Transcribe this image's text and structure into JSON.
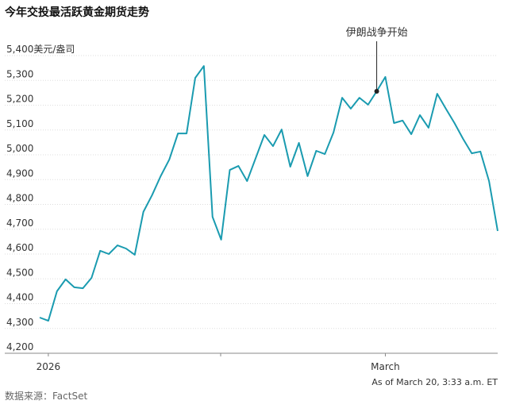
{
  "chart_data": {
    "type": "line",
    "title": "今年交投最活跃黄金期货走势",
    "categories": [
      null,
      "2026",
      null,
      null,
      null,
      null,
      null,
      null,
      null,
      null,
      null,
      null,
      null,
      null,
      null,
      null,
      null,
      null,
      null,
      null,
      null,
      null,
      null,
      null,
      null,
      null,
      null,
      null,
      null,
      null,
      null,
      null,
      null,
      null,
      null,
      null,
      null,
      null,
      null,
      null,
      "March",
      null,
      null,
      null,
      null,
      null,
      null,
      null,
      null,
      null,
      null,
      null,
      null,
      null
    ],
    "series": [
      {
        "name": "黄金期货",
        "color": "#1a9bb0",
        "values": [
          4344,
          4331,
          4450,
          4498,
          4466,
          4462,
          4504,
          4613,
          4600,
          4635,
          4622,
          4597,
          4770,
          4837,
          4914,
          4981,
          5086,
          5086,
          5310,
          5358,
          4750,
          4658,
          4939,
          4955,
          4894,
          4987,
          5080,
          5035,
          5102,
          4952,
          5048,
          4914,
          5016,
          5003,
          5090,
          5230,
          5186,
          5230,
          5202,
          5256,
          5314,
          5128,
          5138,
          5083,
          5160,
          5109,
          5246,
          5186,
          5128,
          5064,
          5006,
          5013,
          4894,
          4693
        ]
      }
    ],
    "ylim": [
      4200,
      5400
    ],
    "yticks": [
      {
        "value": 4200,
        "label": "4,200"
      },
      {
        "value": 4300,
        "label": "4,300"
      },
      {
        "value": 4400,
        "label": "4,400"
      },
      {
        "value": 4500,
        "label": "4,500"
      },
      {
        "value": 4600,
        "label": "4,600"
      },
      {
        "value": 4700,
        "label": "4,700"
      },
      {
        "value": 4800,
        "label": "4,800"
      },
      {
        "value": 4900,
        "label": "4,900"
      },
      {
        "value": 5000,
        "label": "5,000"
      },
      {
        "value": 5100,
        "label": "5,100"
      },
      {
        "value": 5200,
        "label": "5,200"
      },
      {
        "value": 5300,
        "label": "5,300"
      },
      {
        "value": 5400,
        "label": "5,400美元/盎司"
      }
    ],
    "grid": true,
    "annotation": {
      "text": "伊朗战争开始",
      "index": 39
    },
    "note": "As of March 20, 3:33 a.m. ET",
    "source": "数据来源：FactSet"
  }
}
